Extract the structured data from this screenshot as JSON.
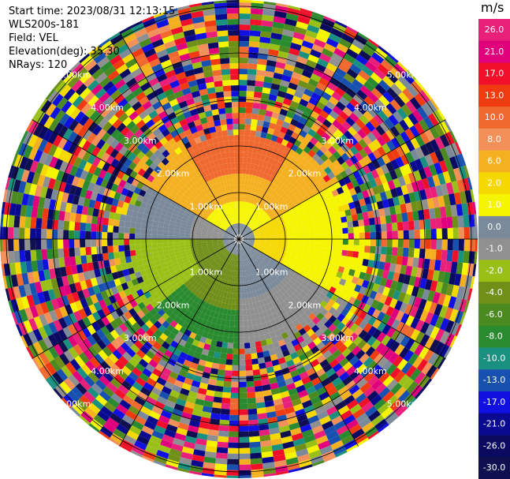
{
  "header": {
    "start_time": "Start time: 2023/08/31 12:13:15",
    "instrument": "WLS200s-181",
    "field": "Field: VEL",
    "elevation": "Elevation(deg): 35.30",
    "nrays": "NRays: 120"
  },
  "range_labels": [
    "1.00km",
    "2.00km",
    "3.00km",
    "4.00km",
    "5.00km"
  ],
  "colorbar": {
    "unit": "m/s",
    "tick_labels": [
      "26.0",
      "21.0",
      "17.0",
      "13.0",
      "10.0",
      "8.0",
      "6.0",
      "2.0",
      "1.0",
      "0.0",
      "-1.0",
      "-2.0",
      "-4.0",
      "-6.0",
      "-8.0",
      "-10.0",
      "-13.0",
      "-17.0",
      "-21.0",
      "-26.0",
      "-30.0"
    ],
    "colors": [
      "#e8207a",
      "#e0007c",
      "#f0102a",
      "#f03a10",
      "#f06a30",
      "#f2905a",
      "#f4b020",
      "#f5d800",
      "#f5f500",
      "#7a8a9a",
      "#909090",
      "#9ac018",
      "#6f8f18",
      "#4a8a20",
      "#2a8a30",
      "#1a9080",
      "#1850b0",
      "#1010e0",
      "#0a0a90",
      "#0a0a60",
      "#101050"
    ]
  },
  "chart_data": {
    "type": "ppi_radar",
    "field": "VEL",
    "unit": "m/s",
    "nrays": 120,
    "elevation_deg": 35.3,
    "range_rings_km": [
      1,
      2,
      3,
      4,
      5
    ],
    "clim": [
      -30,
      26
    ]
  }
}
